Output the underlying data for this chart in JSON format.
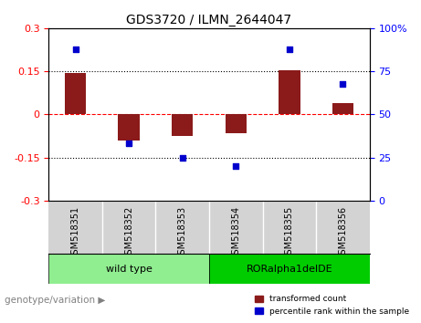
{
  "title": "GDS3720 / ILMN_2644047",
  "samples": [
    "GSM518351",
    "GSM518352",
    "GSM518353",
    "GSM518354",
    "GSM518355",
    "GSM518356"
  ],
  "bar_values": [
    0.145,
    -0.09,
    -0.075,
    -0.065,
    0.155,
    0.04
  ],
  "scatter_values": [
    88,
    33,
    25,
    20,
    88,
    68
  ],
  "left_ylim": [
    -0.3,
    0.3
  ],
  "right_ylim": [
    0,
    100
  ],
  "left_yticks": [
    -0.3,
    -0.15,
    0,
    0.15,
    0.3
  ],
  "right_yticks": [
    0,
    25,
    50,
    75,
    100
  ],
  "left_ytick_labels": [
    "-0.3",
    "-0.15",
    "0",
    "0.15",
    "0.3"
  ],
  "right_ytick_labels": [
    "0",
    "25",
    "50",
    "75",
    "100%"
  ],
  "hlines": [
    0.15,
    0.0,
    -0.15
  ],
  "hline_styles": [
    "dotted",
    "dashed",
    "dotted"
  ],
  "hline_colors": [
    "black",
    "red",
    "black"
  ],
  "bar_color": "#8B1A1A",
  "scatter_color": "#0000CD",
  "group_labels": [
    "wild type",
    "RORalpha1delDE"
  ],
  "group_ranges": [
    [
      0,
      3
    ],
    [
      3,
      6
    ]
  ],
  "group_colors": [
    "#90EE90",
    "#00CC00"
  ],
  "sample_bg_color": "#D3D3D3",
  "genotype_label": "genotype/variation",
  "legend_bar_label": "transformed count",
  "legend_scatter_label": "percentile rank within the sample",
  "bar_width": 0.4
}
